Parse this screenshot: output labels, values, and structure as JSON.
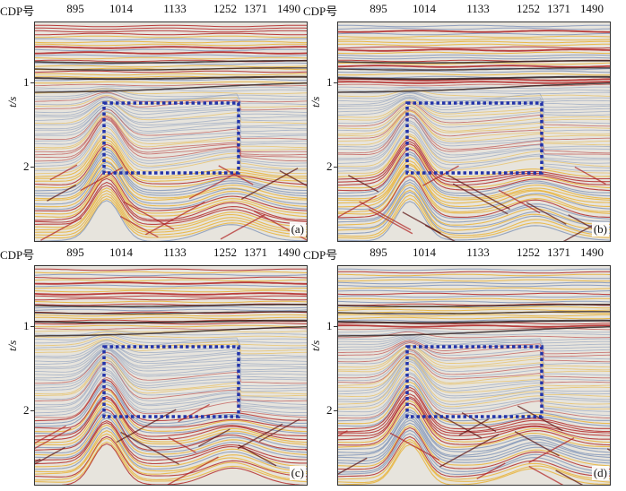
{
  "panels": [
    {
      "label": "(a)"
    },
    {
      "label": "(b)"
    },
    {
      "label": "(c)"
    },
    {
      "label": "(d)"
    }
  ],
  "axis": {
    "cdp_title": "CDP号",
    "cdp_ticks": [
      "895",
      "1014",
      "1133",
      "1252",
      "1371",
      "1490"
    ],
    "time_label": "t/s",
    "time_ticks": [
      "1",
      "2"
    ]
  },
  "colors": {
    "highlight_box": "#2233aa",
    "seismic_red": "#b02020",
    "seismic_yellow": "#e8b030",
    "seismic_blue": "#7f93b8",
    "background": "#e7e4dd"
  }
}
